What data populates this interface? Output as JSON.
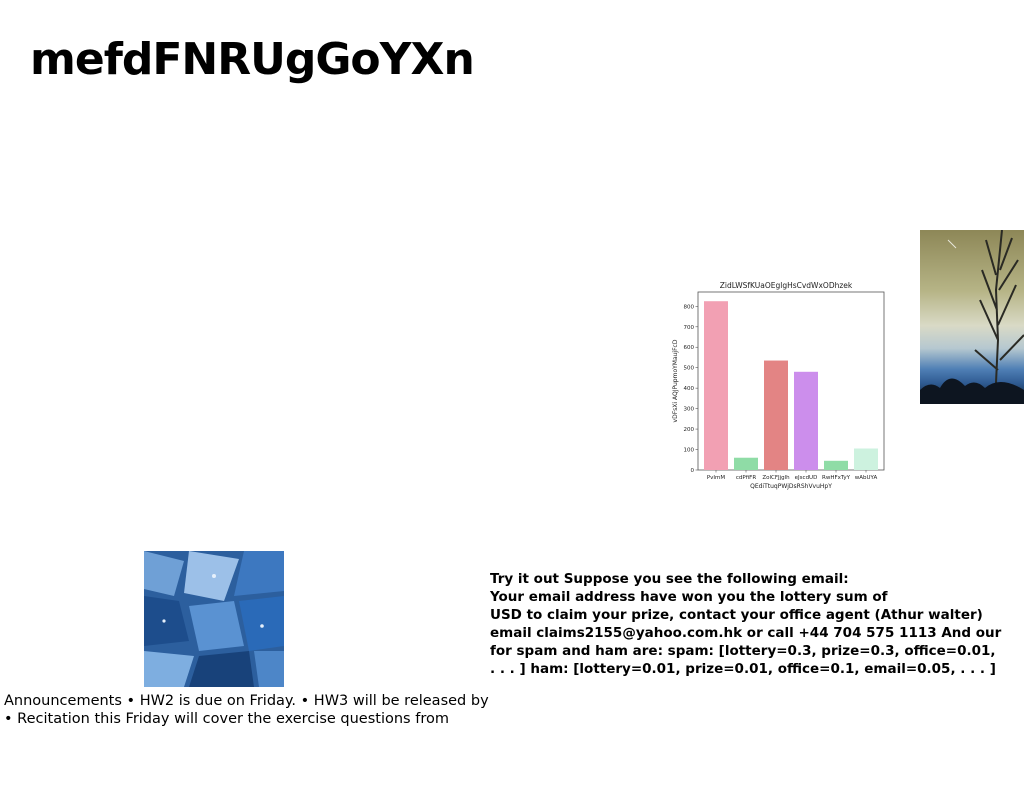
{
  "slide": {
    "title": "mefdFNRUgGoYXn"
  },
  "announcements": {
    "lines": [
      "Announcements • HW2 is due on Friday. • HW3 will be released by",
      "• Recitation this Friday will cover the exercise questions from"
    ]
  },
  "email_example": {
    "lines": [
      "Try it out Suppose you see the following email:",
      "Your email address have won you the lottery sum of",
      "USD to claim your prize, contact your office agent (Athur walter)",
      "email claims2155@yahoo.com.hk or call +44 704 575 1113 And our",
      "for spam and ham are: spam: [lottery=0.3, prize=0.3, office=0.01,",
      ". . . ] ham: [lottery=0.01, prize=0.01, office=0.1, email=0.05, . . . ]"
    ]
  },
  "chart_data": {
    "type": "bar",
    "title": "ZidLWSfKUaOEglgHsCvdWxODhzek",
    "xlabel": "QEdiTtuqPWjDsRShVvuHpY",
    "ylabel": "vDFsXi AQJPupmoYMaujFcD",
    "categories": [
      "PvImM",
      "cdPfiFR",
      "ZolCFJjglh",
      "eJscdUD",
      "RwHFxTyY",
      "wAbUYA"
    ],
    "values": [
      825,
      60,
      535,
      480,
      45,
      105
    ],
    "colors": [
      "#f2a0b3",
      "#8fdca6",
      "#e38484",
      "#cc8eec",
      "#8fdca6",
      "#cdf2df"
    ],
    "yticks": [
      0,
      100,
      200,
      300,
      400,
      500,
      600,
      700,
      800
    ],
    "ylim": [
      0,
      870
    ],
    "grid": false
  }
}
